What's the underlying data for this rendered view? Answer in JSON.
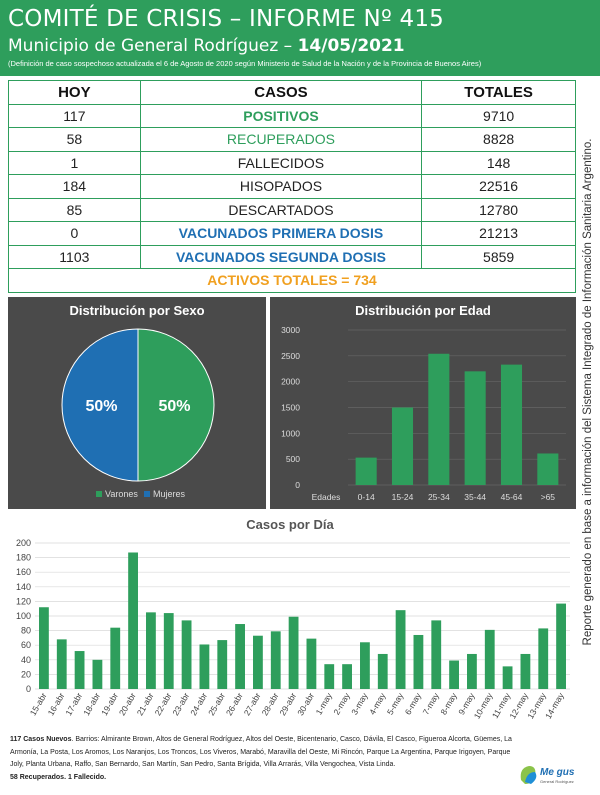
{
  "header": {
    "title": "COMITÉ DE CRISIS – INFORME Nº 415",
    "subtitle_prefix": "Municipio de General Rodríguez – ",
    "subtitle_date": "14/05/2021",
    "note": "(Definición de caso sospechoso actualizada el 6 de Agosto de 2020 según Ministerio de Salud de la Nación y de la Provincia de Buenos Aires)"
  },
  "table": {
    "headers": {
      "hoy": "HOY",
      "casos": "CASOS",
      "totales": "TOTALES"
    },
    "rows": [
      {
        "hoy": "117",
        "label": "POSITIVOS",
        "total": "9710",
        "style": "green"
      },
      {
        "hoy": "58",
        "label": "RECUPERADOS",
        "total": "8828",
        "style": "green-light"
      },
      {
        "hoy": "1",
        "label": "FALLECIDOS",
        "total": "148",
        "style": "plain"
      },
      {
        "hoy": "184",
        "label": "HISOPADOS",
        "total": "22516",
        "style": "plain"
      },
      {
        "hoy": "85",
        "label": "DESCARTADOS",
        "total": "12780",
        "style": "plain"
      },
      {
        "hoy": "0",
        "label": "VACUNADOS PRIMERA DOSIS",
        "total": "21213",
        "style": "blue"
      },
      {
        "hoy": "1103",
        "label": "VACUNADOS SEGUNDA DOSIS",
        "total": "5859",
        "style": "blue"
      }
    ],
    "activos": "ACTIVOS TOTALES = 734"
  },
  "side_text": "Reporte generado en base a información del Sistema Integrado de Información Sanitaria Argentino.",
  "colors": {
    "green": "#2e9e5c",
    "blue": "#1f6fb3",
    "orange": "#f0a020",
    "panel": "#4a4a4a"
  },
  "chart_data": [
    {
      "type": "pie",
      "title": "Distribución por Sexo",
      "labels": [
        "Varones",
        "Mujeres"
      ],
      "values": [
        50,
        50
      ],
      "value_labels": [
        "50%",
        "50%"
      ],
      "colors": [
        "#2e9e5c",
        "#1f6fb3"
      ],
      "legend": "bottom"
    },
    {
      "type": "bar",
      "title": "Distribución por Edad",
      "xlabel": "Edades",
      "categories": [
        "0-14",
        "15-24",
        "25-34",
        "35-44",
        "45-64",
        ">65"
      ],
      "values": [
        530,
        1500,
        2540,
        2200,
        2330,
        610
      ],
      "ylim": [
        0,
        3000
      ],
      "yticks": [
        0,
        500,
        1000,
        1500,
        2000,
        2500,
        3000
      ],
      "color": "#2e9e5c",
      "grid": true
    },
    {
      "type": "bar",
      "title": "Casos por Día",
      "categories": [
        "15-abr",
        "16-abr",
        "17-abr",
        "18-abr",
        "19-abr",
        "20-abr",
        "21-abr",
        "22-abr",
        "23-abr",
        "24-abr",
        "25-abr",
        "26-abr",
        "27-abr",
        "28-abr",
        "29-abr",
        "30-abr",
        "1-may",
        "2-may",
        "3-may",
        "4-may",
        "5-may",
        "6-may",
        "7-may",
        "8-may",
        "9-may",
        "10-may",
        "11-may",
        "12-may",
        "13-may",
        "14-may"
      ],
      "values": [
        112,
        68,
        52,
        40,
        84,
        187,
        105,
        104,
        94,
        61,
        67,
        89,
        73,
        79,
        99,
        69,
        34,
        34,
        64,
        48,
        108,
        74,
        94,
        39,
        48,
        81,
        31,
        48,
        83,
        117
      ],
      "ylim": [
        0,
        200
      ],
      "yticks": [
        0,
        20,
        40,
        60,
        80,
        100,
        120,
        140,
        160,
        180,
        200
      ],
      "color": "#2e9e5c",
      "grid": true
    }
  ],
  "footer": {
    "cases_bold": "117 Casos Nuevos",
    "cases_text": ". Barrios: Almirante Brown, Altos de General Rodríguez, Altos del Oeste, Bicentenario, Casco, Dávila, El Casco, Figueroa Alcorta, Güemes, La Armonía, La Posta, Los Aromos, Los Naranjos, Los Troncos, Los Viveros, Marabó, Maravilla del Oeste, Mi Rincón, Parque La Argentina, Parque Irigoyen, Parque Joly, Planta Urbana, Raffo, San Bernardo, San Martín, San Pedro, Santa Brígida, Villa Arrarás, Villa Vengochea, Vista Linda.",
    "recovered": "58 Recuperados. 1 Fallecido."
  },
  "logo": {
    "text": "Me gusta",
    "small": "General Rodríguez"
  }
}
